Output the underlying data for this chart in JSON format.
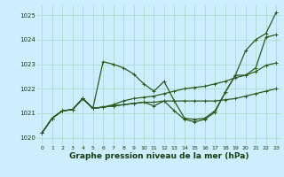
{
  "xlabel": "Graphe pression niveau de la mer (hPa)",
  "bg_color": "#cceeff",
  "grid_color": "#aaddcc",
  "line_color": "#2d5a1b",
  "text_color": "#1a3a0a",
  "ylim": [
    1019.7,
    1025.4
  ],
  "xlim": [
    -0.5,
    23.5
  ],
  "yticks": [
    1020,
    1021,
    1022,
    1023,
    1024,
    1025
  ],
  "xticks": [
    0,
    1,
    2,
    3,
    4,
    5,
    6,
    7,
    8,
    9,
    10,
    11,
    12,
    13,
    14,
    15,
    16,
    17,
    18,
    19,
    20,
    21,
    22,
    23
  ],
  "series": [
    [
      1020.2,
      1020.8,
      1021.1,
      1021.15,
      1021.6,
      1021.2,
      1023.1,
      1023.0,
      1022.85,
      1022.6,
      1022.2,
      1021.9,
      1022.3,
      1021.5,
      1020.8,
      1020.75,
      1020.8,
      1021.1,
      1021.85,
      1022.55,
      1023.55,
      1024.0,
      1024.25,
      1025.1
    ],
    [
      1020.2,
      1020.8,
      1021.1,
      1021.15,
      1021.6,
      1021.2,
      1021.25,
      1021.35,
      1021.5,
      1021.6,
      1021.65,
      1021.7,
      1021.8,
      1021.9,
      1022.0,
      1022.05,
      1022.1,
      1022.2,
      1022.3,
      1022.45,
      1022.55,
      1022.7,
      1022.95,
      1023.05
    ],
    [
      1020.2,
      1020.8,
      1021.1,
      1021.15,
      1021.6,
      1021.2,
      1021.25,
      1021.3,
      1021.35,
      1021.4,
      1021.45,
      1021.45,
      1021.5,
      1021.5,
      1021.5,
      1021.5,
      1021.5,
      1021.5,
      1021.55,
      1021.6,
      1021.7,
      1021.8,
      1021.9,
      1022.0
    ],
    [
      1020.2,
      1020.8,
      1021.1,
      1021.15,
      1021.6,
      1021.2,
      1021.25,
      1021.3,
      1021.35,
      1021.4,
      1021.45,
      1021.3,
      1021.5,
      1021.1,
      1020.75,
      1020.65,
      1020.75,
      1021.05,
      1021.85,
      1022.55,
      1022.55,
      1022.85,
      1024.1,
      1024.2
    ]
  ],
  "marker": "+",
  "marker_size": 3.5,
  "linewidth": 0.9
}
